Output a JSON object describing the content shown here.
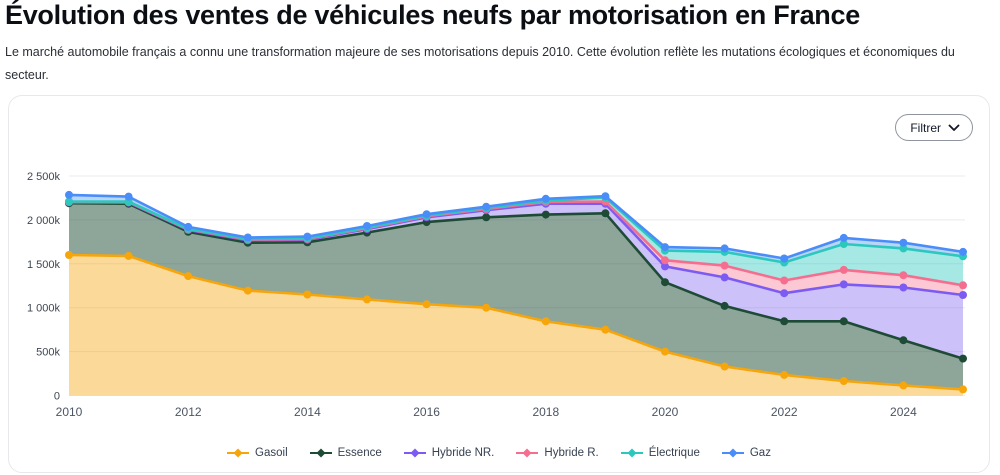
{
  "page": {
    "title": "Évolution des ventes de véhicules neufs par motorisation en France",
    "subtitle": "Le marché automobile français a connu une transformation majeure de ses motorisations depuis 2010. Cette évolution reflète les mutations écologiques et économiques du secteur."
  },
  "chart_card": {
    "filter_button_label": "Filtrer",
    "filter_button_icon": "chevron-down-icon",
    "border_color": "#e6e8ec",
    "grid_color": "#e9ebee"
  },
  "chart_data": {
    "type": "area",
    "stacked": true,
    "title": "",
    "xlabel": "",
    "ylabel": "",
    "x": [
      2010,
      2011,
      2012,
      2013,
      2014,
      2015,
      2016,
      2017,
      2018,
      2019,
      2020,
      2021,
      2022,
      2023,
      2024,
      2025
    ],
    "x_tick_labels": [
      "2010",
      "2012",
      "2014",
      "2016",
      "2018",
      "2020",
      "2022",
      "2024"
    ],
    "y_ticks": [
      0,
      500,
      1000,
      1500,
      2000,
      2500
    ],
    "y_tick_labels": [
      "0",
      "500k",
      "1 000k",
      "1 500k",
      "2 000k",
      "2 500k"
    ],
    "ylim": [
      0,
      2500
    ],
    "values_unit": "k",
    "grid": "horizontal",
    "legend_position": "bottom",
    "series": [
      {
        "name": "Gasoil",
        "color": "#F6A50B",
        "fill": "rgba(246,165,11,0.42)",
        "values": [
          1600,
          1590,
          1360,
          1195,
          1150,
          1095,
          1040,
          1000,
          845,
          750,
          500,
          330,
          235,
          165,
          115,
          70
        ]
      },
      {
        "name": "Essence",
        "color": "#1E4B36",
        "fill": "rgba(30,75,54,0.5)",
        "values": [
          590,
          595,
          505,
          545,
          595,
          760,
          935,
          1030,
          1215,
          1325,
          790,
          690,
          610,
          680,
          515,
          350
        ]
      },
      {
        "name": "Hybride NR.",
        "color": "#7C5BF2",
        "fill": "rgba(124,91,242,0.38)",
        "values": [
          10,
          12,
          20,
          28,
          30,
          40,
          55,
          80,
          125,
          110,
          180,
          325,
          320,
          420,
          600,
          725
        ]
      },
      {
        "name": "Hybride R.",
        "color": "#F56E8F",
        "fill": "rgba(245,110,143,0.38)",
        "values": [
          5,
          6,
          7,
          8,
          9,
          10,
          12,
          15,
          20,
          25,
          70,
          135,
          145,
          165,
          140,
          110
        ]
      },
      {
        "name": "Électrique",
        "color": "#2CC8BE",
        "fill": "rgba(44,200,190,0.42)",
        "values": [
          5,
          5,
          5,
          6,
          6,
          7,
          8,
          10,
          15,
          45,
          110,
          155,
          205,
          295,
          305,
          330
        ]
      },
      {
        "name": "Gaz",
        "color": "#4A8DF8",
        "fill": "rgba(74,141,248,0.38)",
        "values": [
          75,
          57,
          23,
          18,
          20,
          18,
          15,
          15,
          20,
          15,
          40,
          40,
          45,
          70,
          65,
          50
        ]
      }
    ]
  }
}
